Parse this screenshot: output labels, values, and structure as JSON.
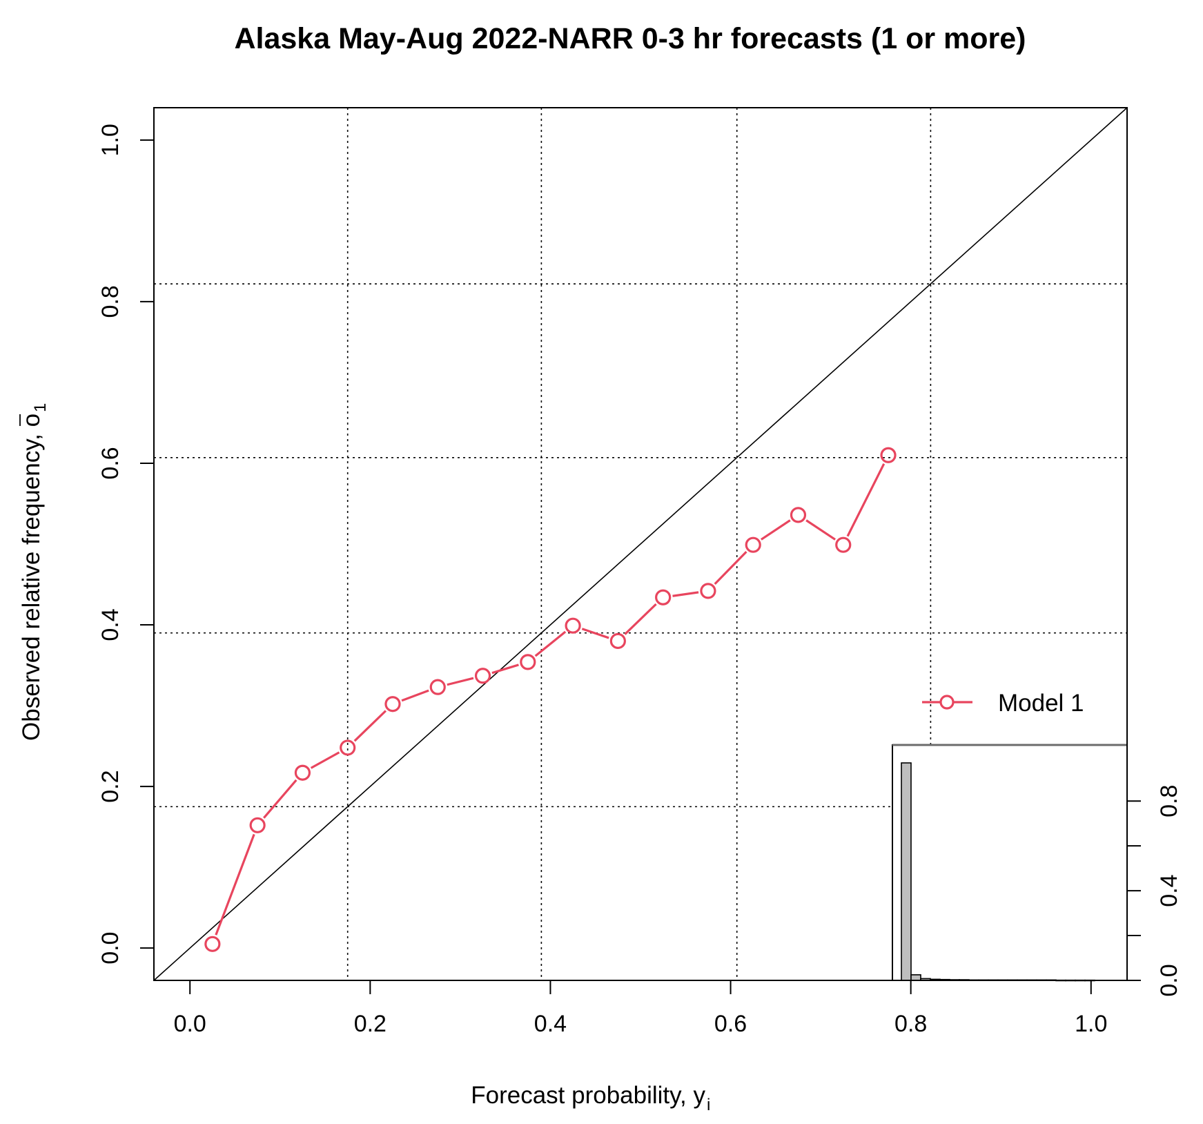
{
  "colors": {
    "model": "#E8455E",
    "axis": "#000000",
    "grid": "#000000",
    "histogram_fill": "#BEBEBE"
  },
  "chart_data": {
    "type": "line",
    "title": "Alaska May-Aug 2022-NARR 0-3 hr forecasts (1 or more)",
    "xlabel": "Forecast probability, y",
    "xlabel_sub": "i",
    "ylabel": "Observed relative frequency, o",
    "ylabel_sub": "1",
    "xlim": [
      -0.04,
      1.04
    ],
    "ylim": [
      -0.04,
      1.04
    ],
    "xticks": [
      "0.0",
      "0.2",
      "0.4",
      "0.6",
      "0.8",
      "1.0"
    ],
    "yticks": [
      "0.0",
      "0.2",
      "0.4",
      "0.6",
      "0.8",
      "1.0"
    ],
    "grid": "dotted",
    "vertical_gridlines": [
      0.175,
      0.39,
      0.607,
      0.822
    ],
    "horizontal_gridlines": [
      0.175,
      0.39,
      0.607,
      0.822
    ],
    "reference_line": "diagonal (perfect reliability)",
    "series": [
      {
        "name": "Model 1",
        "marker": "open circle",
        "x": [
          0.025,
          0.075,
          0.125,
          0.175,
          0.225,
          0.275,
          0.325,
          0.375,
          0.425,
          0.475,
          0.525,
          0.575,
          0.625,
          0.675,
          0.725,
          0.775
        ],
        "y": [
          0.005,
          0.152,
          0.217,
          0.248,
          0.302,
          0.323,
          0.337,
          0.354,
          0.399,
          0.38,
          0.434,
          0.442,
          0.499,
          0.536,
          0.499,
          0.61
        ]
      }
    ],
    "legend": {
      "position": "right",
      "entries": [
        "Model 1"
      ]
    },
    "inset_histogram": {
      "yticks": [
        "0.0",
        "0.4",
        "0.8"
      ],
      "ylim": [
        0,
        1.05
      ],
      "bin_centers": [
        0.025,
        0.075,
        0.125,
        0.175,
        0.225,
        0.275,
        0.325,
        0.375,
        0.425,
        0.475,
        0.525,
        0.575,
        0.625,
        0.675,
        0.725,
        0.775,
        0.825,
        0.875,
        0.925,
        0.975
      ],
      "values": [
        0.97,
        0.025,
        0.008,
        0.005,
        0.004,
        0.003,
        0.003,
        0.002,
        0.002,
        0.002,
        0.002,
        0.002,
        0.002,
        0.002,
        0.002,
        0.002,
        0.001,
        0.001,
        0.001,
        0.001
      ]
    }
  }
}
